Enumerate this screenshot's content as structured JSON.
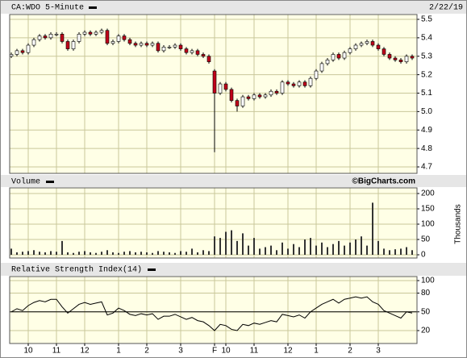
{
  "header": {
    "title": "CA:WDO 5-Minute",
    "date": "2/22/19"
  },
  "chart_data": [
    {
      "type": "candlestick",
      "open": [
        5.3,
        5.31,
        5.33,
        5.32,
        5.36,
        5.39,
        5.41,
        5.4,
        5.42,
        5.42,
        5.38,
        5.34,
        5.38,
        5.42,
        5.43,
        5.42,
        5.43,
        5.44,
        5.37,
        5.38,
        5.41,
        5.39,
        5.37,
        5.36,
        5.37,
        5.36,
        5.37,
        5.33,
        5.35,
        5.35,
        5.36,
        5.34,
        5.32,
        5.33,
        5.31,
        5.3,
        5.22,
        5.1,
        5.15,
        5.12,
        5.06,
        5.03,
        5.08,
        5.07,
        5.09,
        5.08,
        5.09,
        5.11,
        5.1,
        5.16,
        5.15,
        5.14,
        5.16,
        5.14,
        5.18,
        5.22,
        5.26,
        5.28,
        5.31,
        5.29,
        5.32,
        5.34,
        5.36,
        5.37,
        5.38,
        5.36,
        5.34,
        5.31,
        5.29,
        5.28,
        5.27,
        5.3
      ],
      "high": [
        5.32,
        5.34,
        5.34,
        5.37,
        5.4,
        5.42,
        5.42,
        5.43,
        5.43,
        5.43,
        5.39,
        5.39,
        5.43,
        5.44,
        5.44,
        5.44,
        5.45,
        5.45,
        5.39,
        5.42,
        5.42,
        5.4,
        5.38,
        5.38,
        5.38,
        5.38,
        5.38,
        5.36,
        5.36,
        5.37,
        5.37,
        5.35,
        5.34,
        5.34,
        5.32,
        5.31,
        5.23,
        5.16,
        5.16,
        5.13,
        5.07,
        5.09,
        5.09,
        5.1,
        5.1,
        5.1,
        5.12,
        5.12,
        5.17,
        5.17,
        5.16,
        5.17,
        5.17,
        5.19,
        5.23,
        5.27,
        5.29,
        5.32,
        5.32,
        5.33,
        5.35,
        5.37,
        5.38,
        5.39,
        5.39,
        5.37,
        5.35,
        5.32,
        5.3,
        5.29,
        5.31,
        5.31
      ],
      "low": [
        5.29,
        5.3,
        5.31,
        5.31,
        5.35,
        5.38,
        5.39,
        5.39,
        5.41,
        5.37,
        5.33,
        5.33,
        5.37,
        5.41,
        5.41,
        5.41,
        5.42,
        5.36,
        5.36,
        5.37,
        5.38,
        5.36,
        5.35,
        5.35,
        5.35,
        5.35,
        5.32,
        5.32,
        5.34,
        5.34,
        5.33,
        5.31,
        5.31,
        5.3,
        5.29,
        5.26,
        4.78,
        5.09,
        5.11,
        5.05,
        5.0,
        5.02,
        5.06,
        5.06,
        5.07,
        5.07,
        5.08,
        5.09,
        5.09,
        5.14,
        5.13,
        5.13,
        5.13,
        5.13,
        5.17,
        5.21,
        5.25,
        5.27,
        5.28,
        5.28,
        5.31,
        5.33,
        5.35,
        5.36,
        5.35,
        5.33,
        5.3,
        5.28,
        5.27,
        5.26,
        5.26,
        5.28
      ],
      "close": [
        5.31,
        5.33,
        5.32,
        5.36,
        5.39,
        5.41,
        5.4,
        5.42,
        5.42,
        5.38,
        5.34,
        5.38,
        5.42,
        5.43,
        5.42,
        5.43,
        5.44,
        5.37,
        5.38,
        5.41,
        5.39,
        5.37,
        5.36,
        5.37,
        5.36,
        5.37,
        5.33,
        5.35,
        5.35,
        5.36,
        5.34,
        5.32,
        5.33,
        5.31,
        5.3,
        5.27,
        5.1,
        5.15,
        5.12,
        5.06,
        5.03,
        5.08,
        5.07,
        5.09,
        5.08,
        5.09,
        5.11,
        5.1,
        5.16,
        5.15,
        5.14,
        5.16,
        5.14,
        5.18,
        5.22,
        5.26,
        5.28,
        5.31,
        5.29,
        5.32,
        5.34,
        5.36,
        5.37,
        5.38,
        5.36,
        5.34,
        5.31,
        5.29,
        5.28,
        5.27,
        5.3,
        5.29
      ],
      "up_color": "#ffffff",
      "down_color": "#c0001a",
      "ylim": [
        4.7,
        5.5
      ],
      "yticks": [
        4.7,
        4.8,
        4.9,
        {
          "value": 5,
          "label": "5.0"
        },
        5.1,
        5.2,
        5.3,
        5.4,
        5.5
      ],
      "grid": true
    },
    {
      "type": "bar",
      "title": "Volume",
      "source": "©BigCharts.com",
      "y_label": "Thousands",
      "values": [
        20,
        8,
        10,
        12,
        15,
        10,
        8,
        12,
        10,
        45,
        8,
        6,
        10,
        12,
        8,
        6,
        10,
        15,
        8,
        6,
        10,
        12,
        8,
        10,
        8,
        6,
        12,
        10,
        8,
        6,
        12,
        10,
        20,
        8,
        15,
        12,
        60,
        55,
        75,
        80,
        45,
        70,
        30,
        55,
        20,
        25,
        30,
        15,
        40,
        20,
        35,
        25,
        50,
        55,
        30,
        40,
        25,
        35,
        45,
        30,
        40,
        50,
        60,
        30,
        170,
        45,
        20,
        15,
        18,
        20,
        25,
        15
      ],
      "color": "#333333",
      "ylim": [
        0,
        200
      ],
      "yticks": [
        0,
        50,
        100,
        150,
        200
      ],
      "grid": true
    },
    {
      "type": "line",
      "title": "Relative Strength Index(14)",
      "categories": [
        null,
        null,
        null,
        "10",
        null,
        null,
        null,
        null,
        "11",
        null,
        null,
        null,
        null,
        "12",
        null,
        null,
        null,
        null,
        null,
        "1",
        null,
        null,
        null,
        null,
        "2",
        null,
        null,
        null,
        null,
        null,
        "3",
        null,
        null,
        null,
        null,
        null,
        "F",
        null,
        "10",
        null,
        null,
        null,
        null,
        "11",
        null,
        null,
        null,
        null,
        null,
        "12",
        null,
        null,
        null,
        null,
        "1",
        null,
        null,
        null,
        null,
        null,
        "2",
        null,
        null,
        null,
        null,
        "3",
        null,
        null,
        null,
        null,
        null,
        null
      ],
      "values": [
        50,
        55,
        52,
        60,
        65,
        68,
        66,
        70,
        70,
        58,
        48,
        55,
        62,
        65,
        62,
        64,
        66,
        45,
        48,
        56,
        52,
        46,
        44,
        47,
        45,
        47,
        38,
        43,
        43,
        46,
        42,
        38,
        41,
        36,
        34,
        28,
        20,
        30,
        28,
        22,
        20,
        30,
        28,
        32,
        30,
        33,
        36,
        34,
        46,
        44,
        42,
        45,
        40,
        50,
        56,
        62,
        66,
        70,
        64,
        70,
        72,
        74,
        72,
        74,
        66,
        62,
        52,
        48,
        44,
        40,
        50,
        48
      ],
      "color": "#000000",
      "midline": 50,
      "ylim": [
        0,
        100
      ],
      "yticks": [
        20,
        50,
        80,
        100
      ],
      "grid": true
    }
  ]
}
